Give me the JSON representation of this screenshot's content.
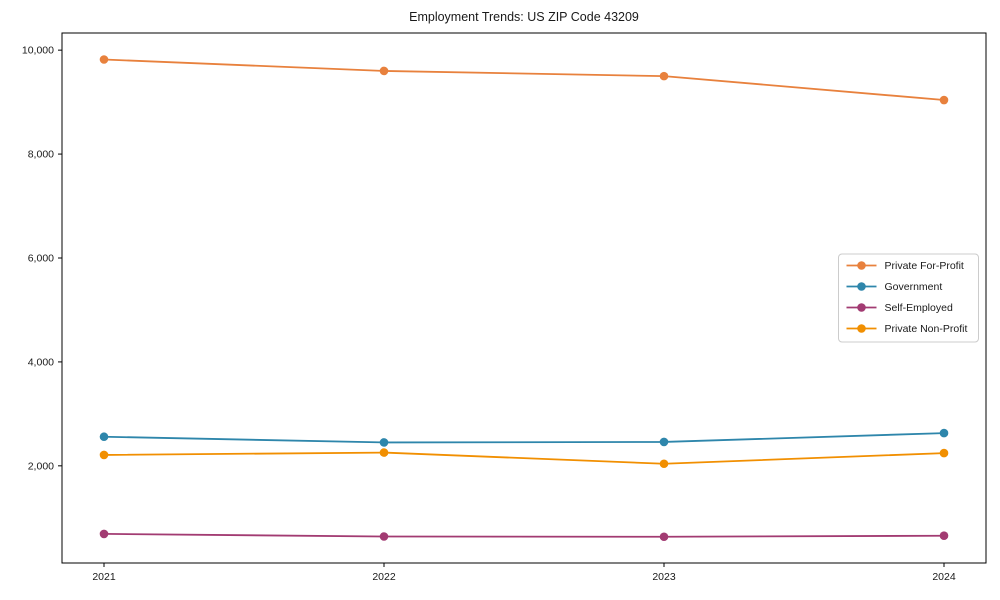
{
  "page": {
    "background": "#ffffff"
  },
  "chart_data": {
    "type": "line",
    "title": "Employment Trends: US ZIP Code 43209",
    "xlabel": "",
    "ylabel": "",
    "x_values": [
      2021,
      2022,
      2023,
      2024
    ],
    "x_tick_labels": [
      "2021",
      "2022",
      "2023",
      "2024"
    ],
    "y_tick_values": [
      2000,
      4000,
      6000,
      8000,
      10000
    ],
    "y_tick_labels": [
      "2,000",
      "4,000",
      "6,000",
      "8,000",
      "10,000"
    ],
    "xlim": [
      2020.85,
      2024.15
    ],
    "ylim": [
      130,
      10330
    ],
    "grid": false,
    "axis_color": "#000000",
    "text_color": "#1a1a1a",
    "marker": "circle",
    "legend": {
      "position": "center-right",
      "background": "#ffffff",
      "border_color": "#cccccc"
    },
    "series": [
      {
        "name": "Private For-Profit",
        "color": "#E8813D",
        "values": [
          9820,
          9600,
          9500,
          9040
        ]
      },
      {
        "name": "Government",
        "color": "#2E86AB",
        "values": [
          2560,
          2450,
          2460,
          2630
        ]
      },
      {
        "name": "Self-Employed",
        "color": "#A23B72",
        "values": [
          690,
          640,
          635,
          655
        ]
      },
      {
        "name": "Private Non-Profit",
        "color": "#F18F01",
        "values": [
          2210,
          2255,
          2040,
          2245
        ]
      }
    ]
  }
}
